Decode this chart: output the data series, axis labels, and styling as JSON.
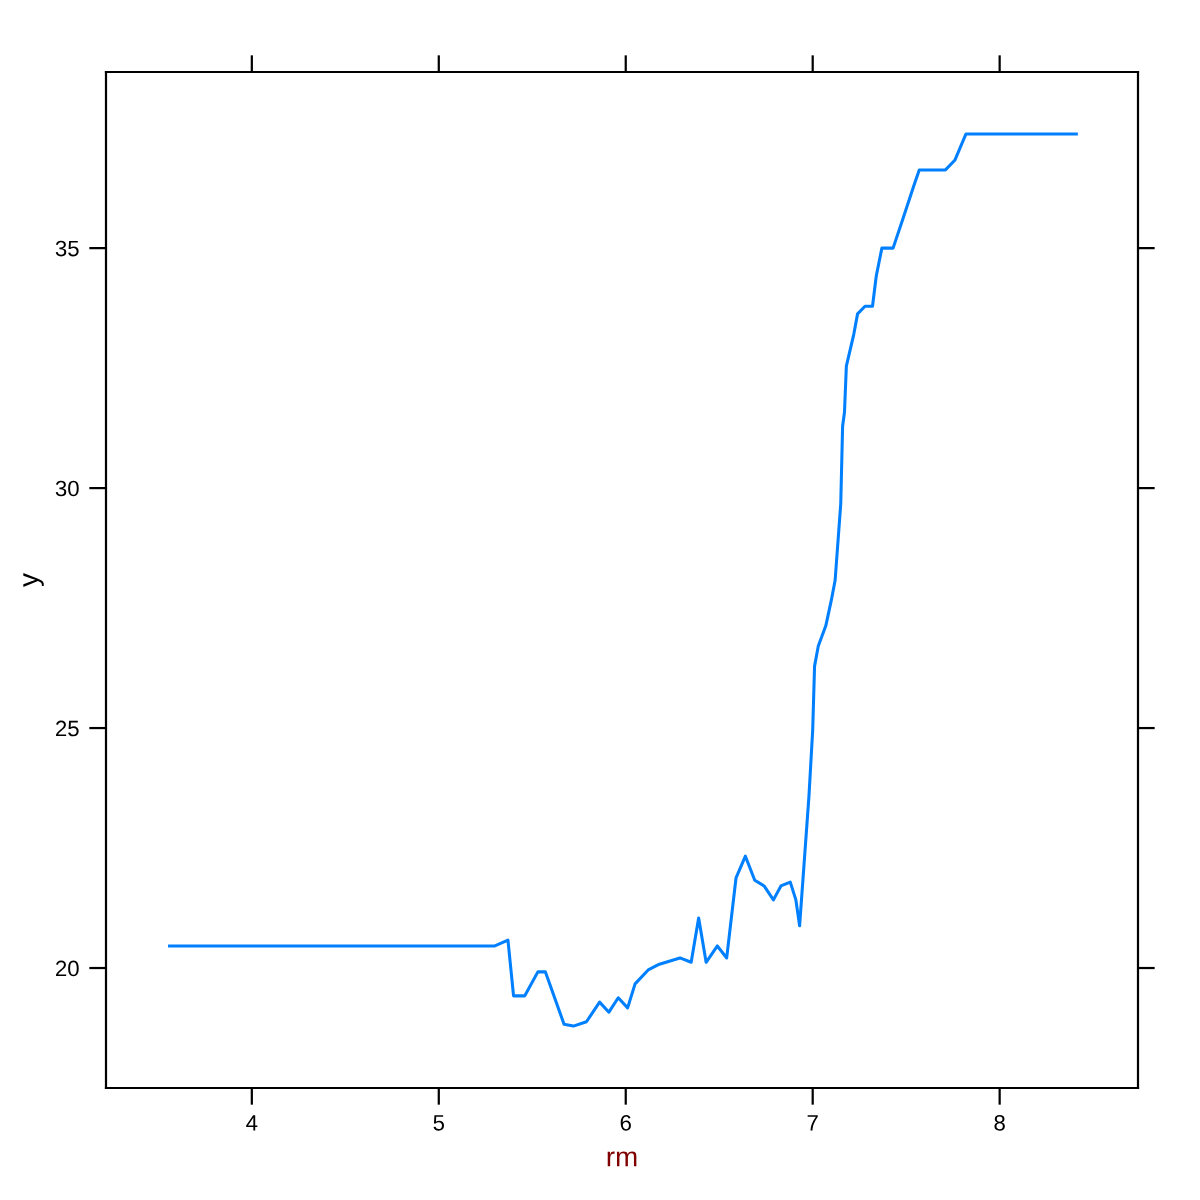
{
  "chart_data": {
    "type": "line",
    "xlabel": "rm",
    "ylabel": "y",
    "xlim": [
      3.22,
      8.74
    ],
    "ylim": [
      17.5,
      38.67
    ],
    "xticks": [
      4,
      5,
      6,
      7,
      8
    ],
    "yticks": [
      20,
      25,
      30,
      35
    ],
    "grid": false,
    "legend": false,
    "marker": "none",
    "line_style": "solid",
    "series": [
      {
        "color": "#0080ff",
        "x": [
          3.56,
          5.3,
          5.37,
          5.4,
          5.46,
          5.53,
          5.57,
          5.67,
          5.72,
          5.79,
          5.86,
          5.91,
          5.96,
          6.01,
          6.05,
          6.12,
          6.18,
          6.29,
          6.35,
          6.39,
          6.43,
          6.49,
          6.54,
          6.59,
          6.64,
          6.69,
          6.74,
          6.79,
          6.83,
          6.88,
          6.91,
          6.93,
          6.95,
          6.98,
          7.0,
          7.01,
          7.03,
          7.07,
          7.1,
          7.12,
          7.15,
          7.16,
          7.17,
          7.18,
          7.22,
          7.24,
          7.28,
          7.32,
          7.34,
          7.37,
          7.43,
          7.48,
          7.54,
          7.57,
          7.71,
          7.76,
          7.82,
          8.41
        ],
        "values": [
          20.46,
          20.46,
          20.58,
          19.42,
          19.42,
          19.92,
          19.92,
          18.83,
          18.79,
          18.88,
          19.29,
          19.08,
          19.38,
          19.17,
          19.67,
          19.96,
          20.08,
          20.21,
          20.12,
          21.04,
          20.12,
          20.46,
          20.21,
          21.88,
          22.33,
          21.83,
          21.71,
          21.42,
          21.71,
          21.79,
          21.42,
          20.88,
          21.96,
          23.58,
          24.96,
          26.29,
          26.71,
          27.13,
          27.67,
          28.08,
          29.67,
          31.29,
          31.58,
          32.54,
          33.21,
          33.63,
          33.79,
          33.79,
          34.42,
          35.0,
          35.0,
          35.58,
          36.29,
          36.63,
          36.63,
          36.83,
          37.38,
          37.38
        ]
      }
    ]
  }
}
